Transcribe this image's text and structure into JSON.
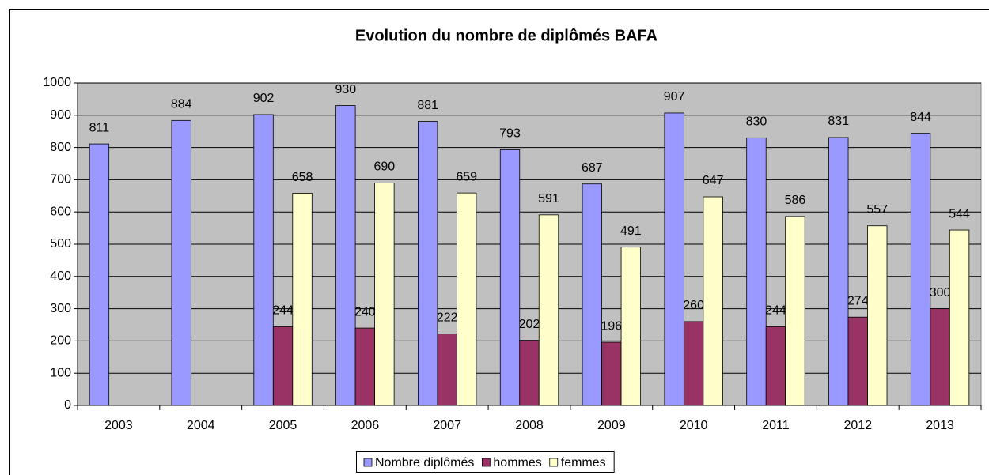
{
  "chart_data": {
    "type": "bar",
    "title": "Evolution du nombre de diplômés BAFA",
    "categories": [
      "2003",
      "2004",
      "2005",
      "2006",
      "2007",
      "2008",
      "2009",
      "2010",
      "2011",
      "2012",
      "2013"
    ],
    "series": [
      {
        "name": "Nombre diplômés",
        "color": "#9999ff",
        "values": [
          811,
          884,
          902,
          930,
          881,
          793,
          687,
          907,
          830,
          831,
          844
        ]
      },
      {
        "name": "hommes",
        "color": "#993366",
        "values": [
          null,
          null,
          244,
          240,
          222,
          202,
          196,
          260,
          244,
          274,
          300
        ]
      },
      {
        "name": "femmes",
        "color": "#ffffcc",
        "values": [
          null,
          null,
          658,
          690,
          659,
          591,
          491,
          647,
          586,
          557,
          544
        ]
      }
    ],
    "ylim": [
      0,
      1000
    ],
    "yticks": [
      0,
      100,
      200,
      300,
      400,
      500,
      600,
      700,
      800,
      900,
      1000
    ],
    "grid": true,
    "legend": "bottom"
  }
}
